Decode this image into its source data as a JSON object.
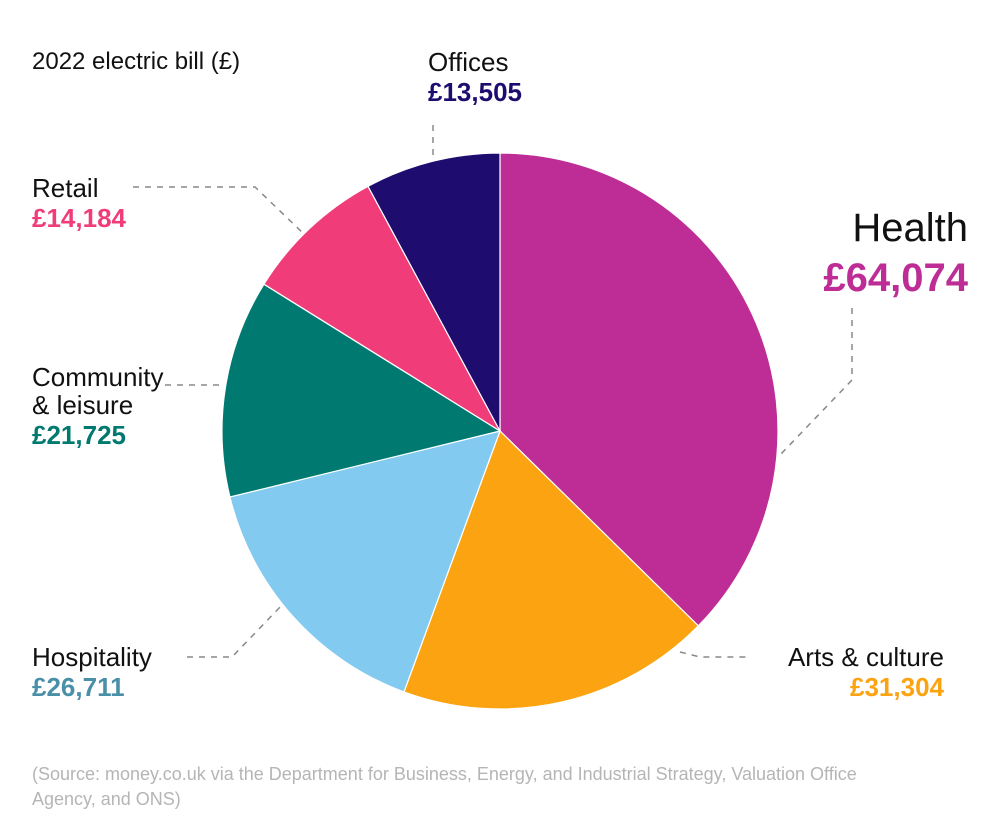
{
  "chart_data": {
    "type": "pie",
    "title": "2022 electric bill (£)",
    "start": "top",
    "direction": "clockwise",
    "slices": [
      {
        "label": "Health",
        "value": 64074,
        "display": "£64,074",
        "color": "#BE2C96",
        "text_color": "#BE2C96"
      },
      {
        "label": "Arts & culture",
        "value": 31304,
        "display": "£31,304",
        "color": "#FBA311",
        "text_color": "#FBA311"
      },
      {
        "label": "Hospitality",
        "value": 26711,
        "display": "£26,711",
        "color": "#82CAF0",
        "text_color": "#4A8FA8"
      },
      {
        "label": "Community\n& leisure",
        "value": 21725,
        "display": "£21,725",
        "color": "#007A70",
        "text_color": "#007A70"
      },
      {
        "label": "Retail",
        "value": 14184,
        "display": "£14,184",
        "color": "#F03C78",
        "text_color": "#F03C78"
      },
      {
        "label": "Offices",
        "value": 13505,
        "display": "£13,505",
        "color": "#1E0C6E",
        "text_color": "#1E0C6E"
      }
    ],
    "source": "(Source: money.co.uk via the Department for Business, Energy, and Industrial Strategy, Valuation Office Agency, and ONS)"
  }
}
